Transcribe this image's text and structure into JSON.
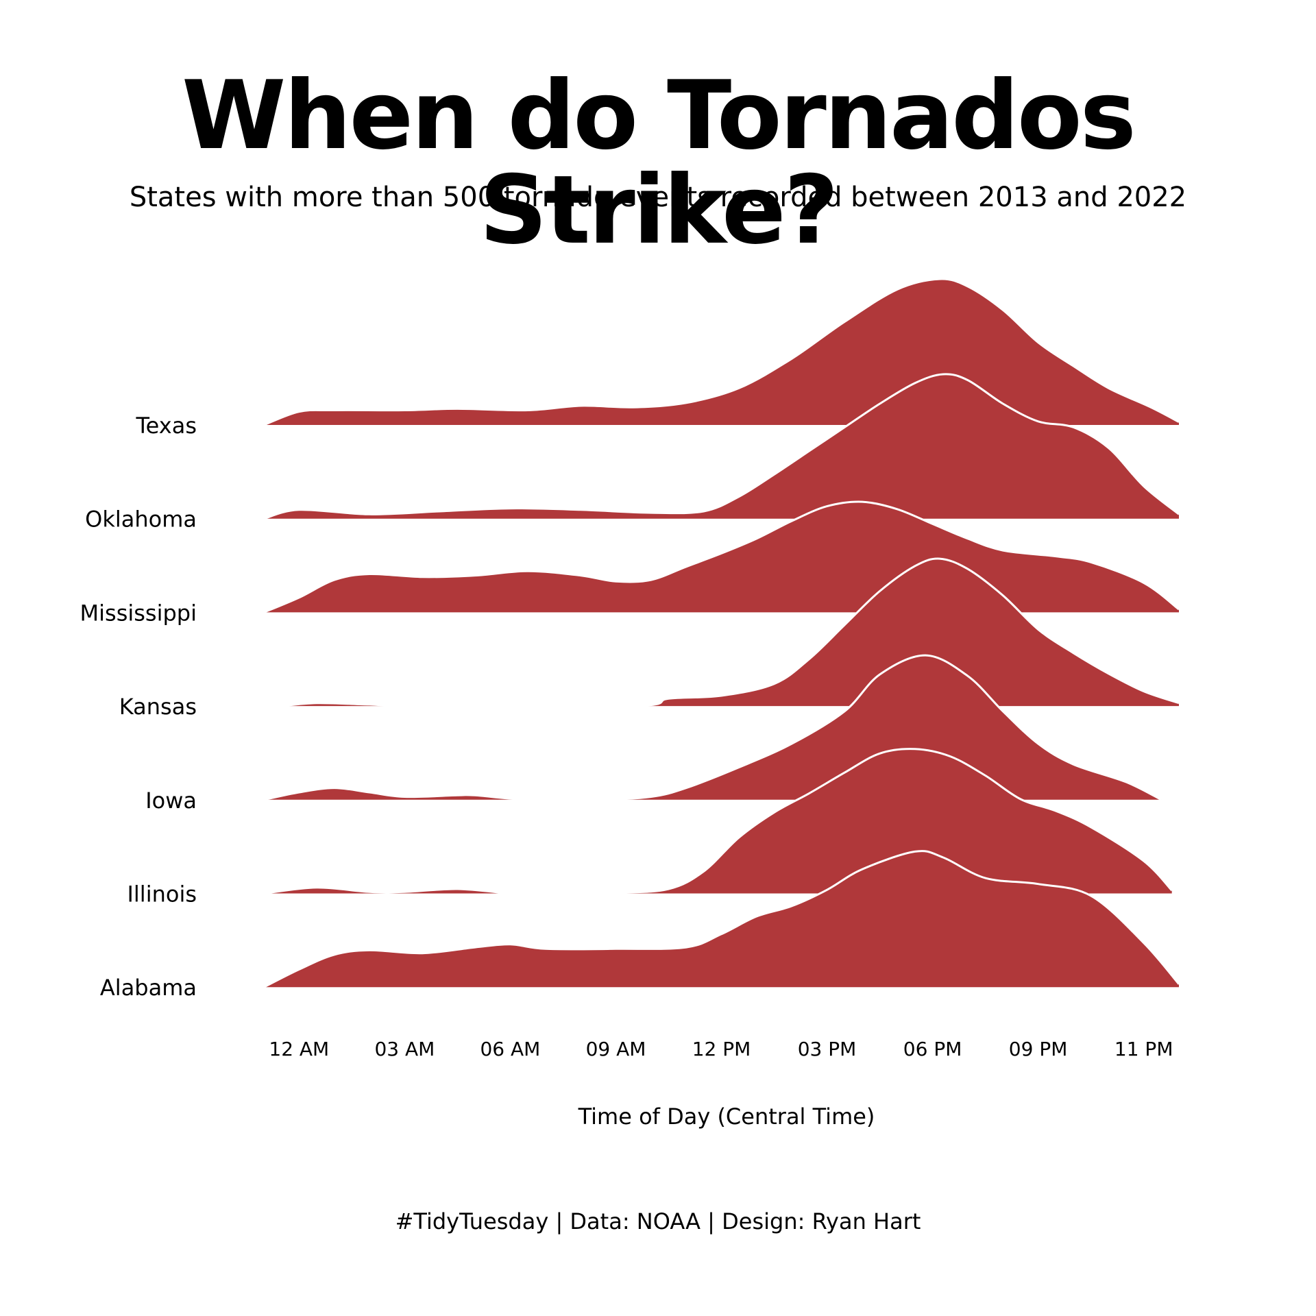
{
  "title": "When do Tornados Strike?",
  "subtitle": "States with more than 500 tornado events recorded between 2013 and 2022",
  "caption": "#TidyTuesday | Data: NOAA | Design: Ryan Hart",
  "chart_data": {
    "type": "ridgeline",
    "xlabel": "Time of Day (Central Time)",
    "x_unit": "hour of day",
    "xlim": [
      -1,
      25
    ],
    "x_ticks": [
      {
        "value": 0,
        "label": "12 AM"
      },
      {
        "value": 3,
        "label": "03 AM"
      },
      {
        "value": 6,
        "label": "06 AM"
      },
      {
        "value": 9,
        "label": "09 AM"
      },
      {
        "value": 12,
        "label": "12 PM"
      },
      {
        "value": 15,
        "label": "03 PM"
      },
      {
        "value": 18,
        "label": "06 PM"
      },
      {
        "value": 21,
        "label": "09 PM"
      },
      {
        "value": 24,
        "label": "11 PM"
      }
    ],
    "fill_color": "#B0383A",
    "outline_color": "#FFFFFF",
    "series": [
      {
        "name": "Texas",
        "values": [
          [
            -1,
            0
          ],
          [
            0,
            0.09
          ],
          [
            1,
            0.1
          ],
          [
            3,
            0.1
          ],
          [
            4.5,
            0.11
          ],
          [
            6.5,
            0.1
          ],
          [
            8,
            0.13
          ],
          [
            9.5,
            0.12
          ],
          [
            11,
            0.15
          ],
          [
            12.5,
            0.25
          ],
          [
            14,
            0.45
          ],
          [
            15.5,
            0.7
          ],
          [
            17,
            0.92
          ],
          [
            18.2,
            0.99
          ],
          [
            19,
            0.94
          ],
          [
            20,
            0.78
          ],
          [
            21,
            0.56
          ],
          [
            22,
            0.4
          ],
          [
            23,
            0.25
          ],
          [
            24.2,
            0.12
          ],
          [
            25,
            0.02
          ]
        ]
      },
      {
        "name": "Oklahoma",
        "values": [
          [
            -1,
            0
          ],
          [
            0,
            0.06
          ],
          [
            2,
            0.03
          ],
          [
            4,
            0.05
          ],
          [
            6,
            0.07
          ],
          [
            8,
            0.06
          ],
          [
            10,
            0.04
          ],
          [
            11.5,
            0.05
          ],
          [
            12.5,
            0.15
          ],
          [
            13.5,
            0.3
          ],
          [
            14.5,
            0.46
          ],
          [
            15.5,
            0.62
          ],
          [
            16.5,
            0.78
          ],
          [
            17.5,
            0.92
          ],
          [
            18.3,
            0.98
          ],
          [
            19,
            0.94
          ],
          [
            20,
            0.78
          ],
          [
            21,
            0.66
          ],
          [
            22,
            0.62
          ],
          [
            23,
            0.48
          ],
          [
            24,
            0.22
          ],
          [
            25,
            0.03
          ]
        ]
      },
      {
        "name": "Mississippi",
        "values": [
          [
            -1,
            0
          ],
          [
            0,
            0.1
          ],
          [
            1,
            0.22
          ],
          [
            2,
            0.26
          ],
          [
            3.5,
            0.24
          ],
          [
            5,
            0.25
          ],
          [
            6.5,
            0.28
          ],
          [
            8,
            0.25
          ],
          [
            9,
            0.21
          ],
          [
            10,
            0.22
          ],
          [
            11,
            0.31
          ],
          [
            12,
            0.4
          ],
          [
            13,
            0.5
          ],
          [
            14,
            0.62
          ],
          [
            15,
            0.72
          ],
          [
            16,
            0.75
          ],
          [
            17,
            0.7
          ],
          [
            18,
            0.6
          ],
          [
            19,
            0.5
          ],
          [
            20,
            0.42
          ],
          [
            21.5,
            0.38
          ],
          [
            22.5,
            0.34
          ],
          [
            24,
            0.2
          ],
          [
            25,
            0.02
          ]
        ]
      },
      {
        "name": "Kansas",
        "values": [
          [
            -0.5,
            0
          ],
          [
            0.5,
            0.02
          ],
          [
            2,
            0.01
          ],
          [
            3.5,
            0
          ],
          [
            9.5,
            0
          ],
          [
            10.5,
            0.05
          ],
          [
            12,
            0.07
          ],
          [
            13.5,
            0.15
          ],
          [
            14.5,
            0.32
          ],
          [
            15.5,
            0.55
          ],
          [
            16.5,
            0.78
          ],
          [
            17.5,
            0.95
          ],
          [
            18.2,
            1.0
          ],
          [
            19,
            0.93
          ],
          [
            20,
            0.75
          ],
          [
            21,
            0.52
          ],
          [
            22,
            0.36
          ],
          [
            23,
            0.22
          ],
          [
            24,
            0.1
          ],
          [
            25,
            0.02
          ]
        ]
      },
      {
        "name": "Iowa",
        "values": [
          [
            -1,
            0
          ],
          [
            0,
            0.05
          ],
          [
            1,
            0.08
          ],
          [
            2,
            0.05
          ],
          [
            3,
            0.02
          ],
          [
            4.5,
            0.03
          ],
          [
            5,
            0.03
          ],
          [
            6.5,
            0
          ],
          [
            8.5,
            0
          ],
          [
            10,
            0.02
          ],
          [
            11,
            0.08
          ],
          [
            12.5,
            0.22
          ],
          [
            14,
            0.38
          ],
          [
            15.5,
            0.6
          ],
          [
            16.5,
            0.85
          ],
          [
            17.8,
            0.98
          ],
          [
            19,
            0.84
          ],
          [
            20,
            0.6
          ],
          [
            21,
            0.38
          ],
          [
            22,
            0.24
          ],
          [
            23.5,
            0.12
          ],
          [
            24.5,
            0
          ]
        ]
      },
      {
        "name": "Illinois",
        "values": [
          [
            -1,
            0
          ],
          [
            0.5,
            0.04
          ],
          [
            2,
            0.01
          ],
          [
            3,
            0.01
          ],
          [
            4.5,
            0.03
          ],
          [
            6,
            0
          ],
          [
            6.5,
            0
          ],
          [
            9,
            0.005
          ],
          [
            10.5,
            0.03
          ],
          [
            11.5,
            0.15
          ],
          [
            12.5,
            0.38
          ],
          [
            13.5,
            0.55
          ],
          [
            14.5,
            0.68
          ],
          [
            15.5,
            0.82
          ],
          [
            16.5,
            0.95
          ],
          [
            17.5,
            0.98
          ],
          [
            18.5,
            0.93
          ],
          [
            19.5,
            0.8
          ],
          [
            20.5,
            0.64
          ],
          [
            21.5,
            0.56
          ],
          [
            22.5,
            0.45
          ],
          [
            24,
            0.22
          ],
          [
            24.8,
            0.02
          ]
        ]
      },
      {
        "name": "Alabama",
        "values": [
          [
            -1,
            0
          ],
          [
            0,
            0.12
          ],
          [
            1,
            0.22
          ],
          [
            2,
            0.25
          ],
          [
            3.5,
            0.23
          ],
          [
            5,
            0.27
          ],
          [
            6,
            0.29
          ],
          [
            7,
            0.26
          ],
          [
            9,
            0.26
          ],
          [
            11,
            0.27
          ],
          [
            12,
            0.36
          ],
          [
            13,
            0.48
          ],
          [
            14,
            0.55
          ],
          [
            15,
            0.66
          ],
          [
            16,
            0.8
          ],
          [
            17.5,
            0.92
          ],
          [
            18.3,
            0.88
          ],
          [
            19.5,
            0.74
          ],
          [
            21,
            0.7
          ],
          [
            22.5,
            0.62
          ],
          [
            24,
            0.3
          ],
          [
            25,
            0.02
          ]
        ]
      }
    ]
  }
}
